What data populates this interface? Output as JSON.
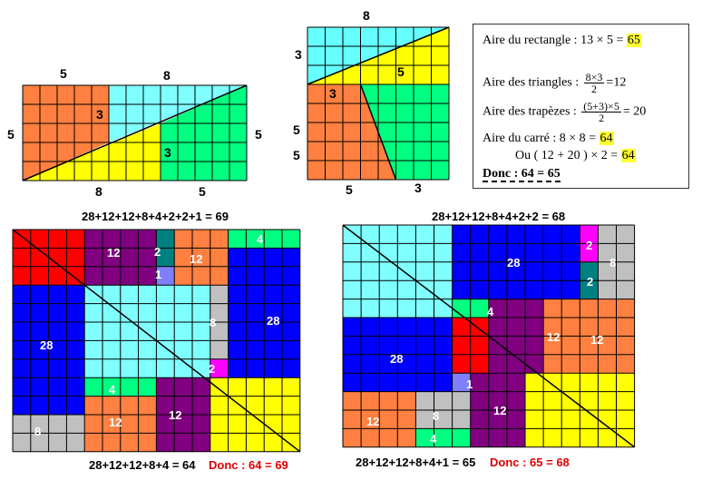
{
  "colors": {
    "orange": "#ff8040",
    "cyan": "#66ffff",
    "yellow": "#ffff00",
    "green": "#00e080",
    "red": "#ff0000",
    "blue": "#0000ff",
    "purple": "#800080",
    "teal": "#008080",
    "lightblue": "#8080ff",
    "magenta": "#ff00ff",
    "lightgray": "#c0c0c0",
    "pale_cyan": "#80ffff",
    "light_green": "#00ff80"
  },
  "top_left": {
    "label_top_left": "5",
    "label_top_right": "8",
    "label_left": "5",
    "label_right": "5",
    "label_bottom_left": "8",
    "label_bottom_right": "5",
    "num_a": "3",
    "num_b": "3"
  },
  "top_square": {
    "label_top": "8",
    "label_left_top": "3",
    "label_left_bottom": "5",
    "label_bottom_left": "5",
    "label_bottom_right": "3",
    "num_a": "3",
    "num_b": "5"
  },
  "info": {
    "l1_text": "Aire du rectangle : 13 × 5 = ",
    "l1_val": "65",
    "l2_text": "Aire des triangles : ",
    "l2_num": "8×3",
    "l2_den": "2",
    "l2_res": "=12",
    "l3_text": "Aire des trapèzes : ",
    "l3_num": "(5+3)×5",
    "l3_den": "2",
    "l3_res": "= 20",
    "l4_text": "Aire du carré      :  8  × 8 = ",
    "l4_val": "64",
    "l5_text": "Ou ( 12 + 20 ) × 2 = ",
    "l5_val": "64",
    "l6_text": "Donc : 64 = 65"
  },
  "bottom_left": {
    "title": "28+12+12+8+4+2+2+1 = 69",
    "footer": "28+12+12+8+4 = 64",
    "donc": "Donc : 64 = 69",
    "labels": [
      "12",
      "2",
      "1",
      "12",
      "4",
      "28",
      "8",
      "28",
      "2",
      "4",
      "12",
      "12",
      "8"
    ]
  },
  "bottom_right": {
    "title": "28+12+12+8+4+2+2 = 68",
    "footer": "28+12+12+8+4+1 = 65",
    "donc": "Donc : 65 = 68",
    "labels": [
      "28",
      "2",
      "8",
      "2",
      "4",
      "12",
      "12",
      "28",
      "1",
      "12",
      "12",
      "8",
      "4"
    ]
  }
}
